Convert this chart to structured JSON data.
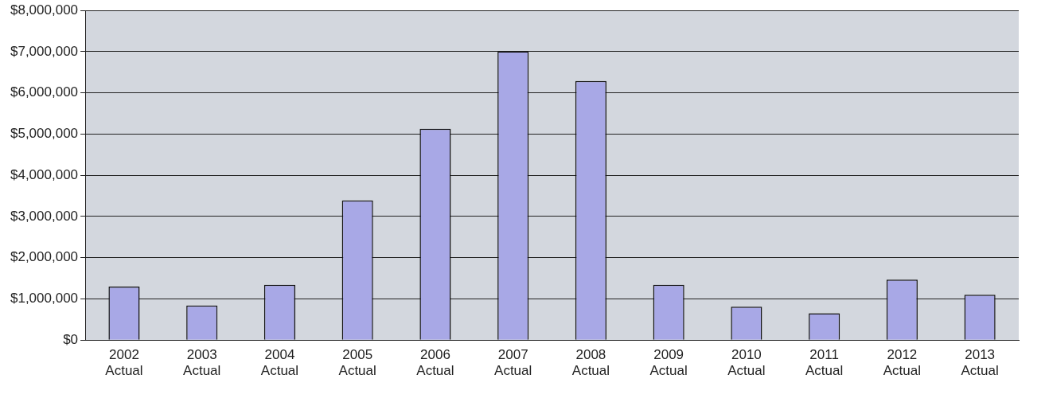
{
  "chart_data": {
    "type": "bar",
    "categories": [
      "2002\nActual",
      "2003\nActual",
      "2004\nActual",
      "2005\nActual",
      "2006\nActual",
      "2007\nActual",
      "2008\nActual",
      "2009\nActual",
      "2010\nActual",
      "2011\nActual",
      "2012\nActual",
      "2013\nActual"
    ],
    "values": [
      1300000,
      840000,
      1340000,
      3390000,
      5130000,
      7010000,
      6290000,
      1340000,
      810000,
      650000,
      1470000,
      1100000
    ],
    "color": "#a8a8e6",
    "ylim": [
      0,
      8000000
    ],
    "yticks": [
      {
        "value": 0,
        "label": "$0"
      },
      {
        "value": 1000000,
        "label": "$1,000,000"
      },
      {
        "value": 2000000,
        "label": "$2,000,000"
      },
      {
        "value": 3000000,
        "label": "$3,000,000"
      },
      {
        "value": 4000000,
        "label": "$4,000,000"
      },
      {
        "value": 5000000,
        "label": "$5,000,000"
      },
      {
        "value": 6000000,
        "label": "$6,000,000"
      },
      {
        "value": 7000000,
        "label": "$7,000,000"
      },
      {
        "value": 8000000,
        "label": "$8,000,000"
      }
    ],
    "grid": "y",
    "legend": false
  }
}
